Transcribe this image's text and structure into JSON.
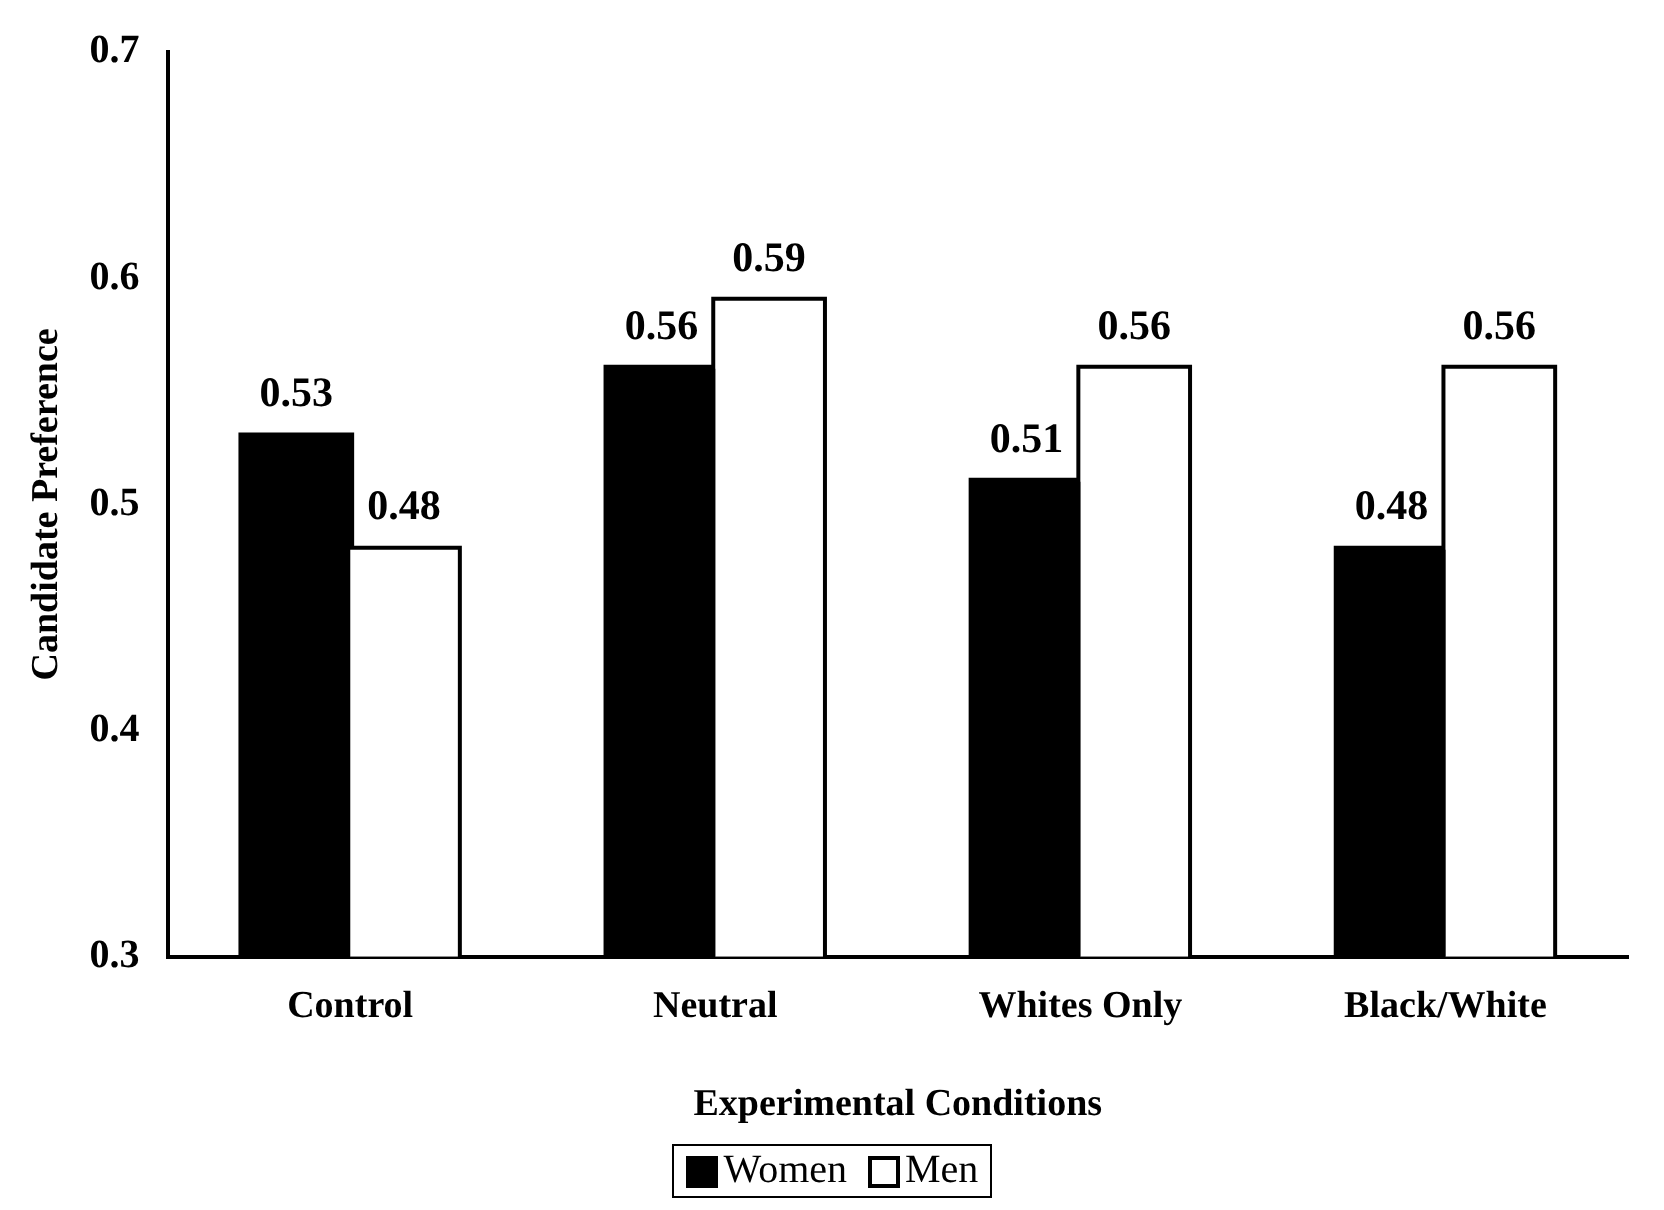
{
  "chart_data": {
    "type": "bar",
    "categories": [
      "Control",
      "Neutral",
      "Whites Only",
      "Black/White"
    ],
    "series": [
      {
        "name": "Women",
        "color": "#000000",
        "values": [
          0.53,
          0.56,
          0.51,
          0.48
        ]
      },
      {
        "name": "Men",
        "color": "#ffffff",
        "values": [
          0.48,
          0.59,
          0.56,
          0.56
        ]
      }
    ],
    "xlabel": "Experimental Conditions",
    "ylabel": "Candidate Preference",
    "ylim": [
      0.3,
      0.7
    ],
    "yticks": [
      0.3,
      0.4,
      0.5,
      0.6,
      0.7
    ],
    "grid": false,
    "legend": "bottom",
    "data_labels": true
  }
}
